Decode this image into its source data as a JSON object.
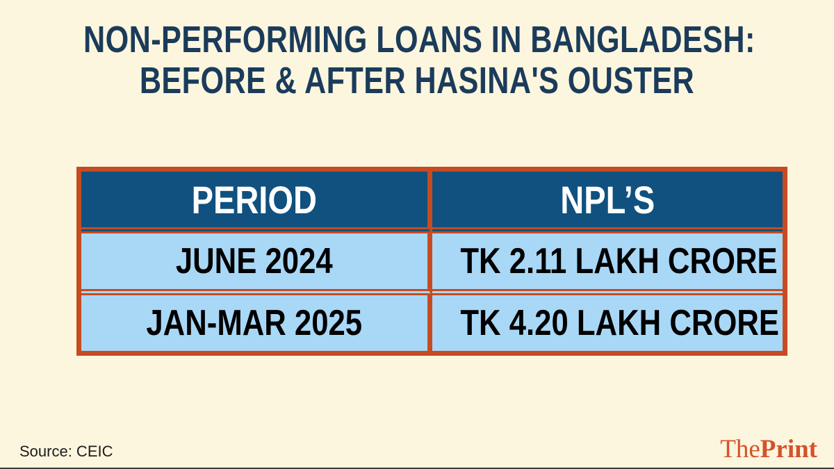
{
  "title": {
    "line1": "NON-PERFORMING LOANS IN BANGLADESH:",
    "line2": "BEFORE & AFTER HASINA'S OUSTER"
  },
  "table": {
    "headers": [
      "PERIOD",
      "NPL’S"
    ],
    "rows": [
      {
        "period": "JUNE 2024",
        "npl": "TK 2.11 LAKH CRORE"
      },
      {
        "period": "JAN-MAR 2025",
        "npl": "TK 4.20 LAKH CRORE"
      }
    ]
  },
  "footer": {
    "source": "Source: CEIC",
    "brand_the": "The",
    "brand_print": "Print"
  },
  "colors": {
    "background_cream": "#FCF6DE",
    "title_navy": "#1B3B5B",
    "header_navy": "#10517F",
    "row_light_blue": "#A9D8F7",
    "border_orange": "#C74B21",
    "brand_red": "#D6512B",
    "header_text": "#FFFFFF",
    "row_text": "#000000"
  },
  "chart_data": {
    "type": "table",
    "title": "NON-PERFORMING LOANS IN BANGLADESH: BEFORE & AFTER HASINA'S OUSTER",
    "columns": [
      "PERIOD",
      "NPL’S"
    ],
    "rows": [
      [
        "JUNE 2024",
        "TK 2.11 LAKH CRORE"
      ],
      [
        "JAN-MAR 2025",
        "TK 4.20 LAKH CRORE"
      ]
    ],
    "npl_values_lakh_crore_tk": [
      2.11,
      4.2
    ],
    "source": "CEIC"
  }
}
